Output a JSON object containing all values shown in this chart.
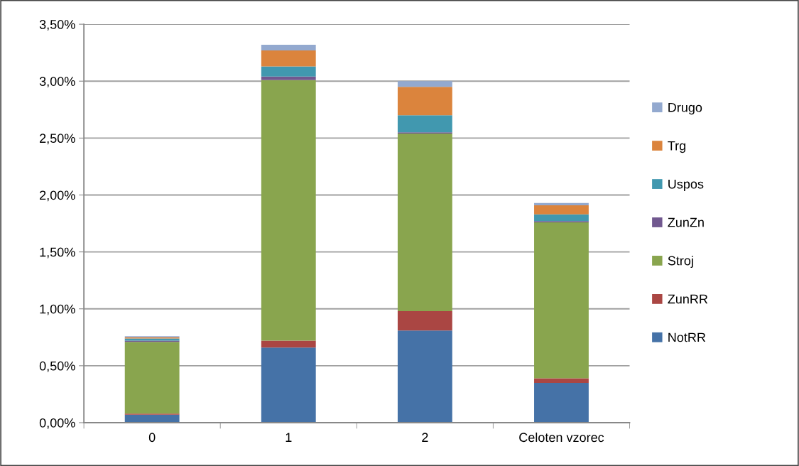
{
  "chart_data": {
    "type": "bar",
    "stacked": true,
    "categories": [
      "0",
      "1",
      "2",
      "Celoten vzorec"
    ],
    "series": [
      {
        "name": "NotRR",
        "color": "#4572a7",
        "values": [
          0.07,
          0.66,
          0.81,
          0.35
        ]
      },
      {
        "name": "ZunRR",
        "color": "#aa4643",
        "values": [
          0.01,
          0.06,
          0.17,
          0.04
        ]
      },
      {
        "name": "Stroj",
        "color": "#89a54e",
        "values": [
          0.63,
          2.29,
          1.56,
          1.37
        ]
      },
      {
        "name": "ZunZn",
        "color": "#71588f",
        "values": [
          0.01,
          0.03,
          0.01,
          0.01
        ]
      },
      {
        "name": "Uspos",
        "color": "#4198af",
        "values": [
          0.02,
          0.09,
          0.15,
          0.06
        ]
      },
      {
        "name": "Trg",
        "color": "#db843d",
        "values": [
          0.01,
          0.14,
          0.25,
          0.08
        ]
      },
      {
        "name": "Drugo",
        "color": "#93a9cf",
        "values": [
          0.01,
          0.05,
          0.05,
          0.02
        ]
      }
    ],
    "ylim": [
      0,
      3.5
    ],
    "yticks": [
      {
        "value": 0,
        "label": "0,00%"
      },
      {
        "value": 0.5,
        "label": "0,50%"
      },
      {
        "value": 1,
        "label": "1,00%"
      },
      {
        "value": 1.5,
        "label": "1,50%"
      },
      {
        "value": 2,
        "label": "2,00%"
      },
      {
        "value": 2.5,
        "label": "2,50%"
      },
      {
        "value": 3,
        "label": "3,00%"
      },
      {
        "value": 3.5,
        "label": "3,50%"
      }
    ],
    "grid": "y",
    "legend": "right"
  }
}
